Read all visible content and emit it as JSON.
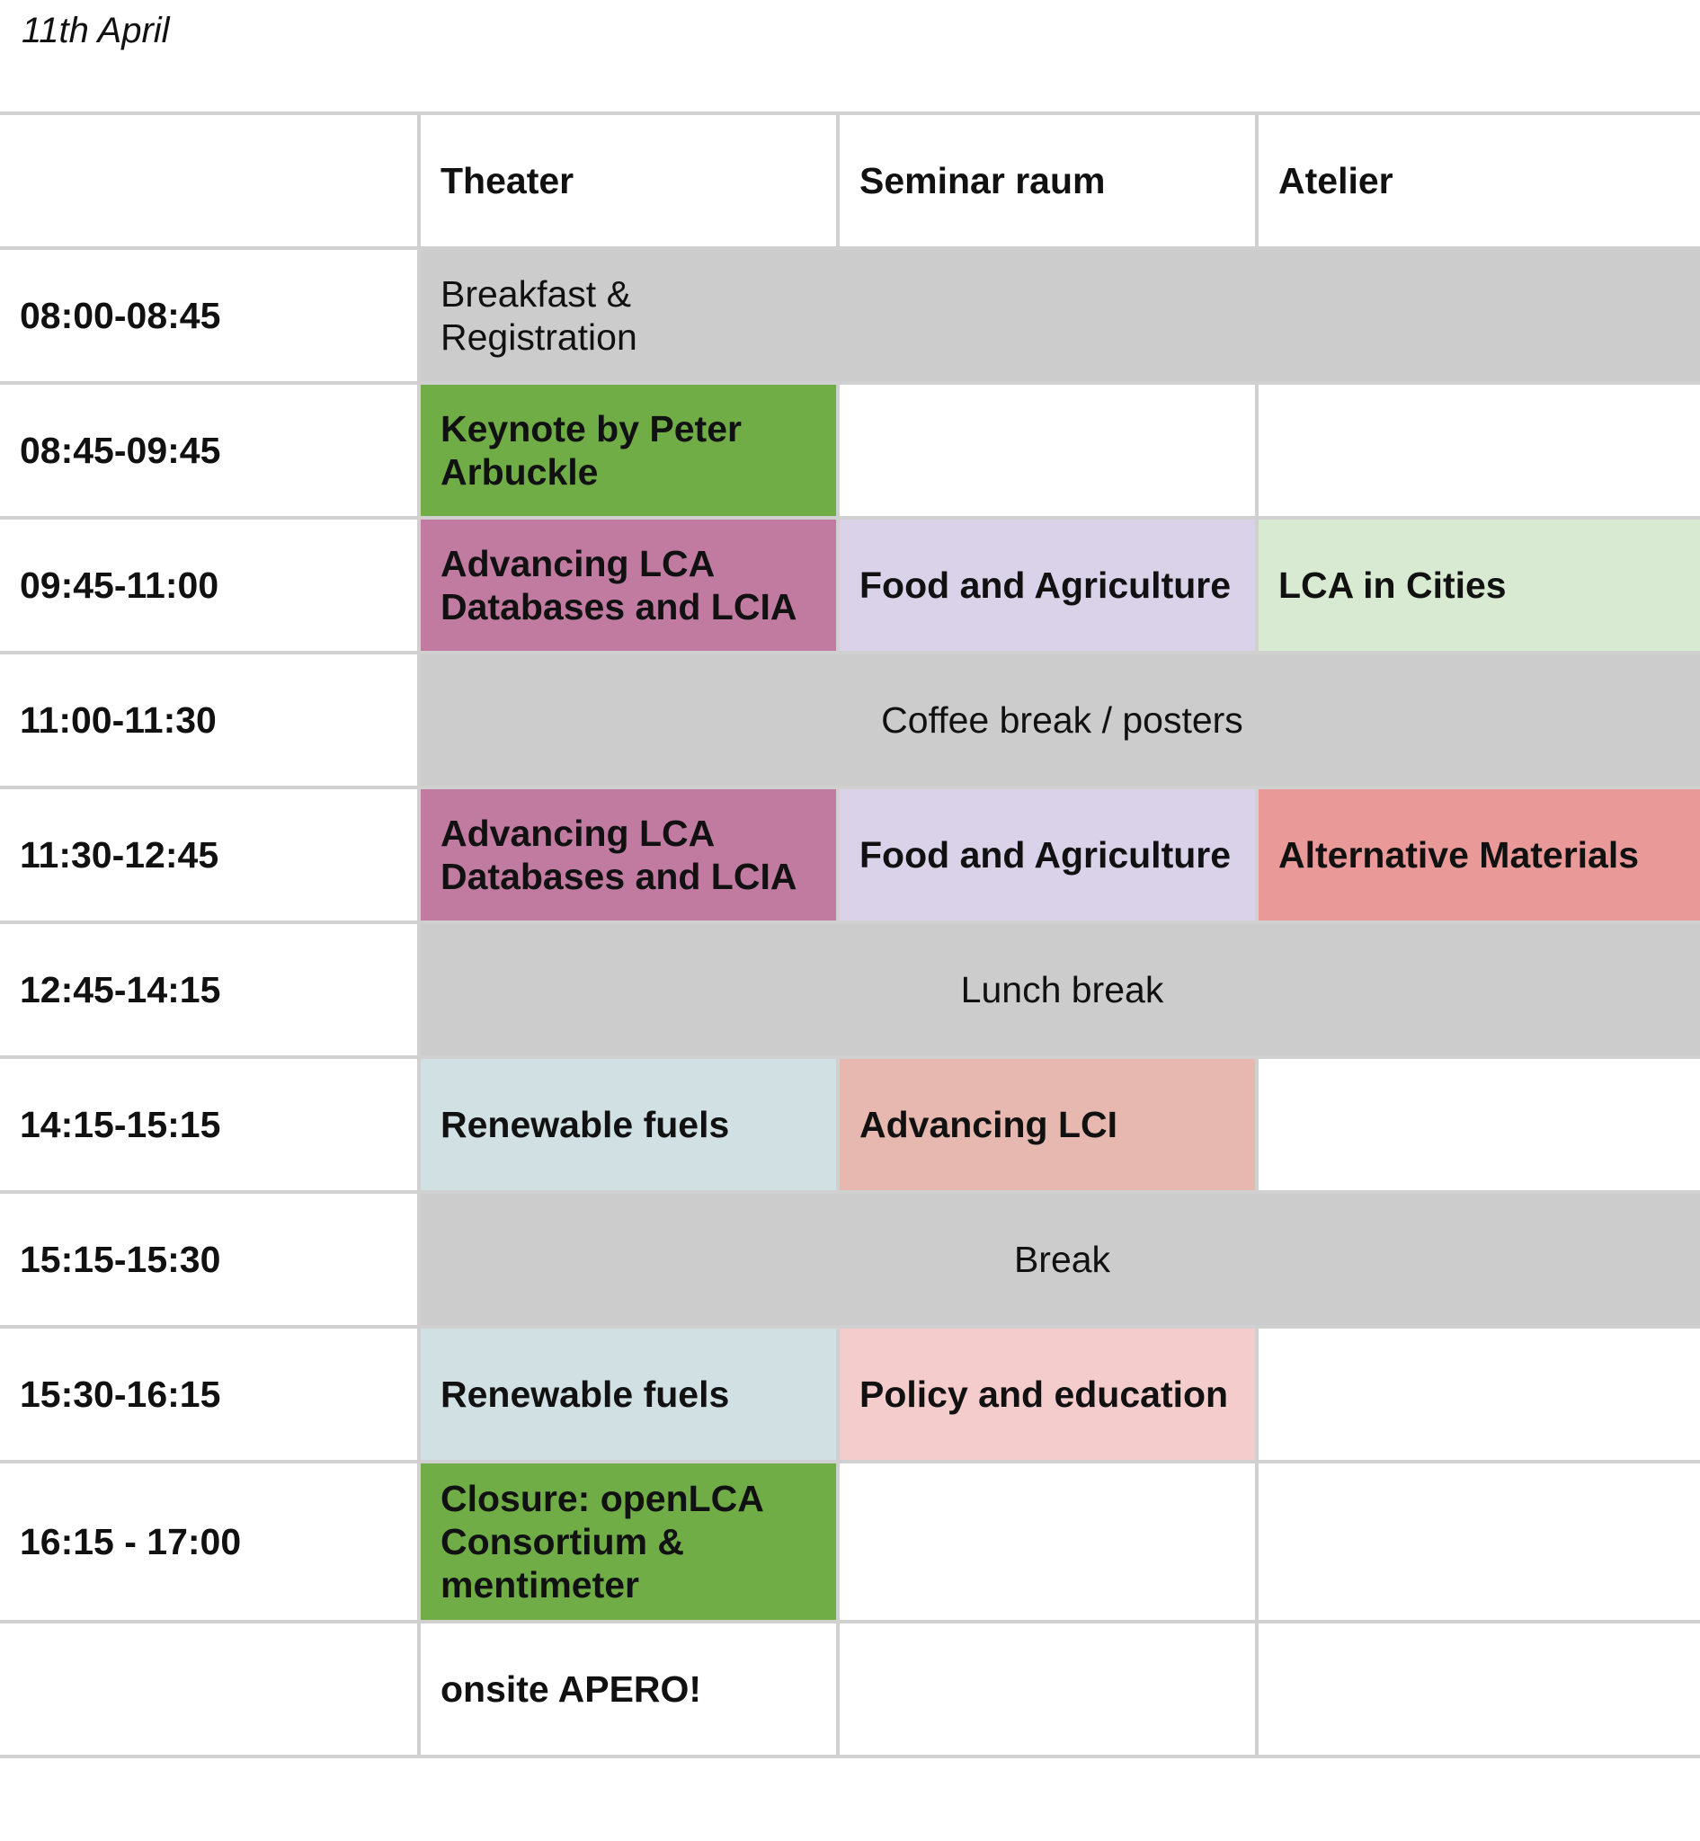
{
  "date": "11th April",
  "rooms": [
    "Theater",
    "Seminar raum",
    "Atelier"
  ],
  "colors": {
    "grey": "#cccccc",
    "green": "#70ad47",
    "magenta": "#c27ba0",
    "lavender": "#d9d2e9",
    "mint": "#d9ead3",
    "salmon": "#ea9999",
    "lightblue": "#d0e0e3",
    "peach": "#e6b8af",
    "pink": "#f4cccc"
  },
  "rows": [
    {
      "time": "08:00-08:45",
      "breakfast": "Breakfast & Registration"
    },
    {
      "time": "08:45-09:45",
      "theater": "Keynote by Peter Arbuckle"
    },
    {
      "time": "09:45-11:00",
      "theater": "Advancing LCA Databases and LCIA",
      "seminar": "Food and Agriculture",
      "atelier": "LCA in Cities"
    },
    {
      "time": "11:00-11:30",
      "span": "Coffee break / posters"
    },
    {
      "time": "11:30-12:45",
      "theater": "Advancing LCA Databases and LCIA",
      "seminar": "Food and Agriculture",
      "atelier": "Alternative Materials"
    },
    {
      "time": "12:45-14:15",
      "span": "Lunch break"
    },
    {
      "time": "14:15-15:15",
      "theater": "Renewable fuels",
      "seminar": "Advancing LCI"
    },
    {
      "time": "15:15-15:30",
      "span": "Break"
    },
    {
      "time": "15:30-16:15",
      "theater": "Renewable fuels",
      "seminar": "Policy and education"
    },
    {
      "time": "16:15 - 17:00",
      "theater": "Closure: openLCA Consortium & mentimeter"
    },
    {
      "time": "",
      "theater": "onsite APERO!"
    }
  ]
}
